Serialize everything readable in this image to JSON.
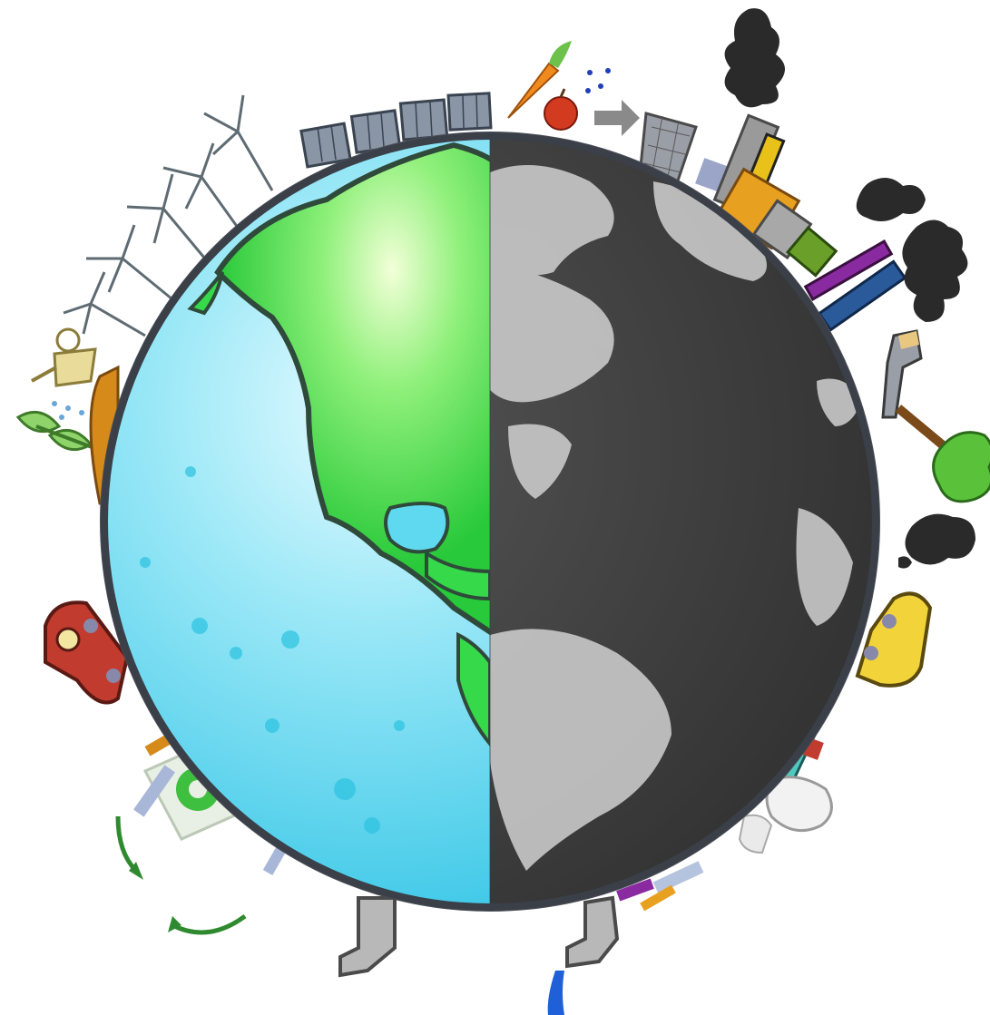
{
  "scene": {
    "left_half": "healthy-earth",
    "right_half": "polluted-earth",
    "left_icons": [
      "solar-panel-icon",
      "wind-turbine-icon",
      "watering-can-icon",
      "sprout-icon",
      "car-icon",
      "recycle-icon",
      "tap-icon"
    ],
    "right_icons": [
      "carrot-icon",
      "apple-icon",
      "trash-can-icon",
      "factory-icon",
      "smoke-icon",
      "axe-icon",
      "tree-icon",
      "car-icon",
      "broken-glass-icon",
      "plastic-bag-icon",
      "dripping-tap-icon"
    ]
  },
  "colors": {
    "ocean": "#3fd2f2",
    "land": "#35d94a",
    "polluted_ocean": "#3b3b3b",
    "polluted_land": "#c9c9c9",
    "smoke": "#2a2a2a",
    "recycle": "#3fbf3f"
  }
}
